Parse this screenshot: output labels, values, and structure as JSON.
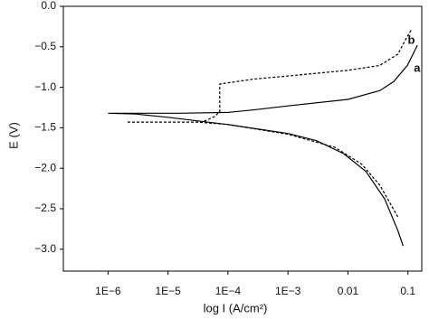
{
  "chart_data": {
    "type": "line",
    "xlabel": "log I (A/cm²)",
    "ylabel": "E (V)",
    "xscale": "log",
    "xlim": [
      1.8e-07,
      0.17
    ],
    "ylim": [
      -3.27,
      0
    ],
    "xticks": [
      {
        "value": 1e-06,
        "label": "1E−6"
      },
      {
        "value": 1e-05,
        "label": "1E−5"
      },
      {
        "value": 0.0001,
        "label": "1E−4"
      },
      {
        "value": 0.001,
        "label": "1E−3"
      },
      0.01,
      0.1
    ],
    "yticks": [
      {
        "value": 0,
        "label": "0.0"
      },
      {
        "value": -0.5,
        "label": "−0.5"
      },
      {
        "value": -1,
        "label": "−1.0"
      },
      {
        "value": -1.5,
        "label": "−1.5"
      },
      {
        "value": -2,
        "label": "−2.0"
      },
      {
        "value": -2.5,
        "label": "−2.5"
      },
      {
        "value": -3,
        "label": "−3.0"
      }
    ],
    "series": [
      {
        "name": "a",
        "color": "#000000",
        "dash": "solid",
        "x": [
          0.083,
          0.068,
          0.041,
          0.02,
          0.0085,
          0.003,
          0.001,
          0.0001,
          1e-05,
          2.9e-06,
          1e-06,
          1.6e-05,
          0.0001,
          0.00026,
          0.001,
          0.01,
          0.034,
          0.058,
          0.098,
          0.144
        ],
        "values": [
          -2.96,
          -2.77,
          -2.38,
          -2.04,
          -1.82,
          -1.66,
          -1.57,
          -1.46,
          -1.37,
          -1.33,
          -1.32,
          -1.32,
          -1.31,
          -1.28,
          -1.23,
          -1.15,
          -1.04,
          -0.93,
          -0.73,
          -0.48
        ]
      },
      {
        "name": "b",
        "color": "#000000",
        "dash": "dashed",
        "x": [
          0.068,
          0.034,
          0.017,
          0.006,
          0.001,
          0.0001,
          3e-05,
          2e-06,
          null,
          4e-05,
          6e-05,
          7.3e-05,
          7.3e-05,
          0.00026,
          0.001,
          0.01,
          0.034,
          0.068,
          0.098,
          0.114
        ],
        "values": [
          -2.6,
          -2.21,
          -1.95,
          -1.74,
          -1.58,
          -1.46,
          -1.43,
          -1.43,
          null,
          -1.42,
          -1.36,
          -1.3,
          -0.96,
          -0.9,
          -0.86,
          -0.79,
          -0.73,
          -0.59,
          -0.37,
          -0.29
        ]
      }
    ]
  }
}
